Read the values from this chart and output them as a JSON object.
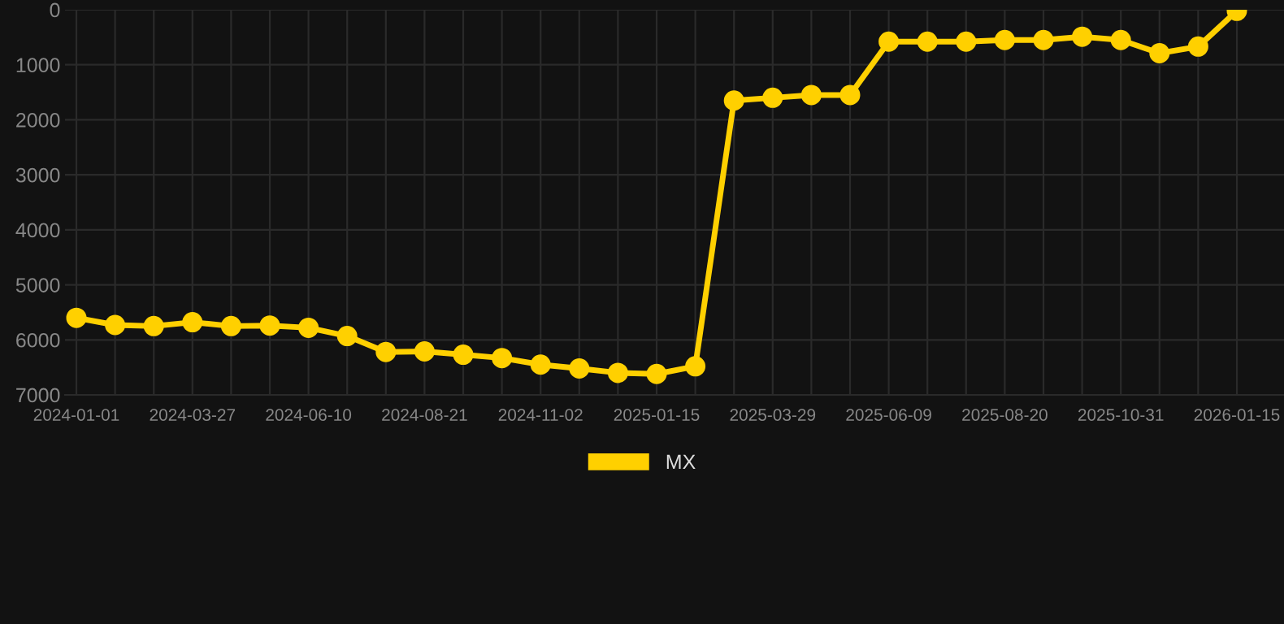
{
  "chart_data": {
    "type": "line",
    "categories": [
      "2024-01-01",
      null,
      null,
      "2024-03-27",
      null,
      null,
      "2024-06-10",
      null,
      null,
      "2024-08-21",
      null,
      null,
      "2024-11-02",
      null,
      null,
      "2025-01-15",
      null,
      null,
      "2025-03-29",
      null,
      null,
      "2025-06-09",
      null,
      null,
      "2025-08-20",
      null,
      null,
      "2025-10-31",
      null,
      null,
      "2026-01-15"
    ],
    "series": [
      {
        "name": "MX",
        "color": "#ffd000",
        "values": [
          5600,
          5730,
          5750,
          5680,
          5750,
          5740,
          5780,
          5930,
          6220,
          6210,
          6270,
          6330,
          6450,
          6520,
          6600,
          6620,
          6480,
          1650,
          1600,
          1550,
          1550,
          580,
          580,
          580,
          550,
          550,
          490,
          550,
          790,
          670,
          20
        ]
      }
    ],
    "ylim": [
      7000,
      0
    ],
    "yticks": [
      0,
      1000,
      2000,
      3000,
      4000,
      5000,
      6000,
      7000
    ],
    "grid": true,
    "legend": "bottom",
    "marker": "circle",
    "line_style": "solid"
  }
}
